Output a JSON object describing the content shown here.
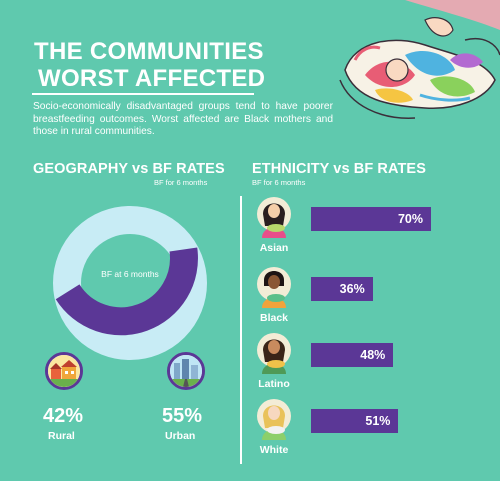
{
  "header": {
    "title_line1": "THE COMMUNITIES",
    "title_line2": "WORST AFFECTED",
    "intro": "Socio-economically disadvantaged groups tend to have poorer breastfeeding outcomes. Worst affected are Black mothers and those in rural communities."
  },
  "geography": {
    "title": "GEOGRAPHY vs BF RATES",
    "subtitle": "BF for 6 months",
    "donut_label": "BF at 6 months",
    "rural": {
      "pct": "42%",
      "value": 42,
      "label": "Rural",
      "icon": "rural-houses-icon"
    },
    "urban": {
      "pct": "55%",
      "value": 55,
      "label": "Urban",
      "icon": "city-skyline-icon"
    }
  },
  "ethnicity": {
    "title": "ETHNICITY vs BF RATES",
    "subtitle": "BF for 6 months",
    "rows": [
      {
        "label": "Asian",
        "pct": "70%",
        "value": 70,
        "icon": "asian-mother-icon"
      },
      {
        "label": "Black",
        "pct": "36%",
        "value": 36,
        "icon": "black-mother-icon"
      },
      {
        "label": "Latino",
        "pct": "48%",
        "value": 48,
        "icon": "latino-mother-icon"
      },
      {
        "label": "White",
        "pct": "51%",
        "value": 51,
        "icon": "white-mother-icon"
      }
    ]
  },
  "colors": {
    "background": "#5fc9ae",
    "purple": "#5b3796",
    "light_blue": "#c8ecf5",
    "white": "#ffffff"
  }
}
